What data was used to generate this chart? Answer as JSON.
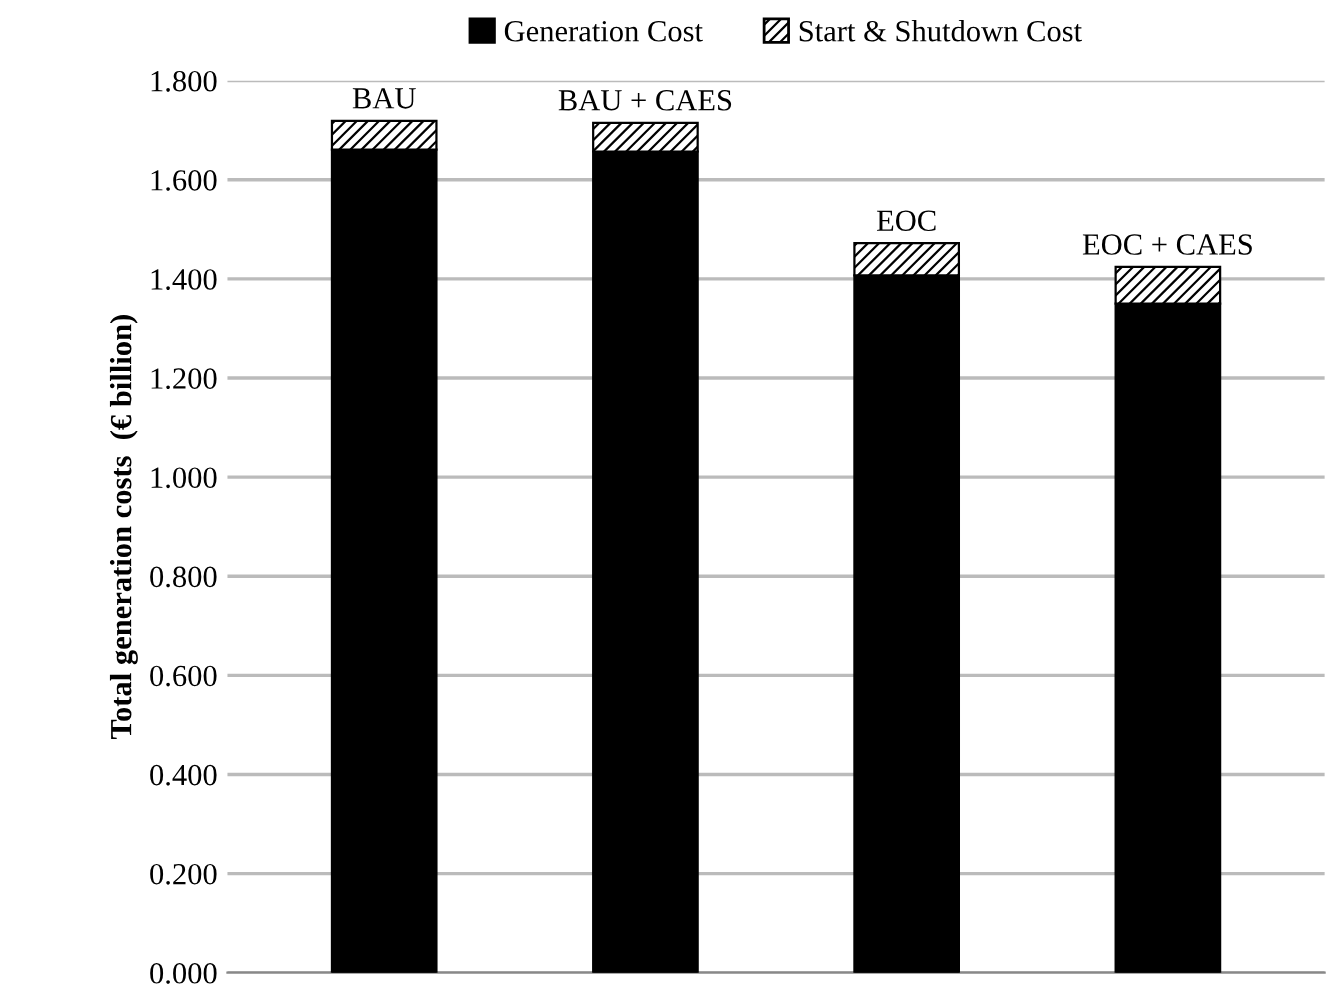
{
  "chart_data": {
    "type": "bar",
    "stacked": true,
    "ylabel": "Total generation costs  (€ billion)",
    "categories": [
      "BAU",
      "BAU + CAES",
      "EOC",
      "EOC + CAES"
    ],
    "series": [
      {
        "name": "Generation Cost",
        "color": "#000000",
        "values": [
          1.661,
          1.657,
          1.407,
          1.35
        ]
      },
      {
        "name": "Start & Shutdown Cost",
        "color": "#000000",
        "values": [
          0.058,
          0.058,
          0.065,
          0.074
        ]
      }
    ],
    "ylim": [
      0,
      1.8
    ],
    "yticks": [
      {
        "value": 0,
        "label": "0.000"
      },
      {
        "value": 0.2,
        "label": "0.200"
      },
      {
        "value": 0.4,
        "label": "0.400"
      },
      {
        "value": 0.6,
        "label": "0.600"
      },
      {
        "value": 0.8,
        "label": "0.800"
      },
      {
        "value": 1.0,
        "label": "1.000"
      },
      {
        "value": 1.2,
        "label": "1.200"
      },
      {
        "value": 1.4,
        "label": "1.400"
      },
      {
        "value": 1.6,
        "label": "1.600"
      },
      {
        "value": 1.8,
        "label": "1.800"
      }
    ],
    "grid": "y",
    "legend": "top"
  }
}
